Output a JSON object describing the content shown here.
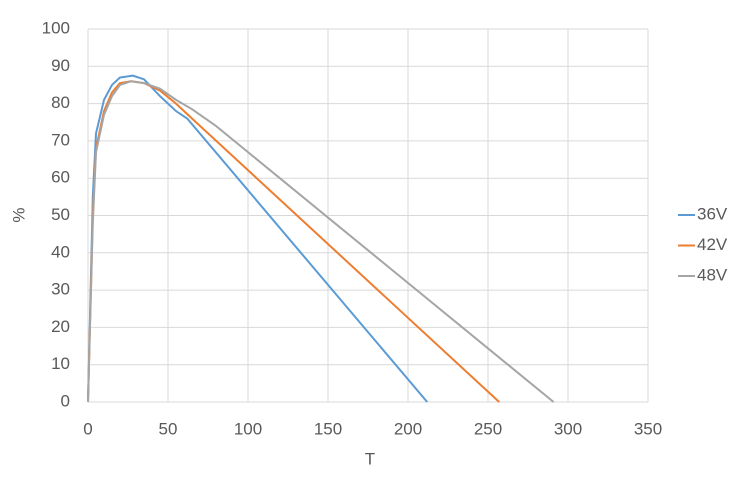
{
  "chart_data": {
    "type": "line",
    "x_label": "T",
    "y_label": "%",
    "xlim": [
      0,
      350
    ],
    "xticks": [
      0,
      50,
      100,
      150,
      200,
      250,
      300,
      350
    ],
    "ylim": [
      0,
      100
    ],
    "yticks": [
      0,
      10,
      20,
      30,
      40,
      50,
      60,
      70,
      80,
      90,
      100
    ],
    "grid": true,
    "legend": "right",
    "series": [
      {
        "name": "36V",
        "color": "#5b9bd5",
        "x": [
          0,
          3,
          5,
          10,
          15,
          20,
          28,
          35,
          45,
          55,
          62,
          212
        ],
        "values": [
          0,
          55,
          72,
          81,
          85,
          87,
          87.5,
          86.5,
          82,
          78,
          76,
          0
        ]
      },
      {
        "name": "42V",
        "color": "#ed7d31",
        "x": [
          0,
          3,
          5,
          10,
          15,
          20,
          27,
          35,
          45,
          55,
          65,
          257
        ],
        "values": [
          0,
          50,
          68,
          78,
          83,
          85.5,
          86,
          85.5,
          83.5,
          80,
          76,
          0
        ]
      },
      {
        "name": "48V",
        "color": "#a5a5a5",
        "x": [
          0,
          3,
          5,
          10,
          15,
          20,
          27,
          35,
          45,
          55,
          65,
          80,
          291
        ],
        "values": [
          0,
          48,
          67,
          77,
          82,
          85,
          86,
          85.5,
          84,
          81,
          78.5,
          74,
          0
        ]
      }
    ]
  }
}
